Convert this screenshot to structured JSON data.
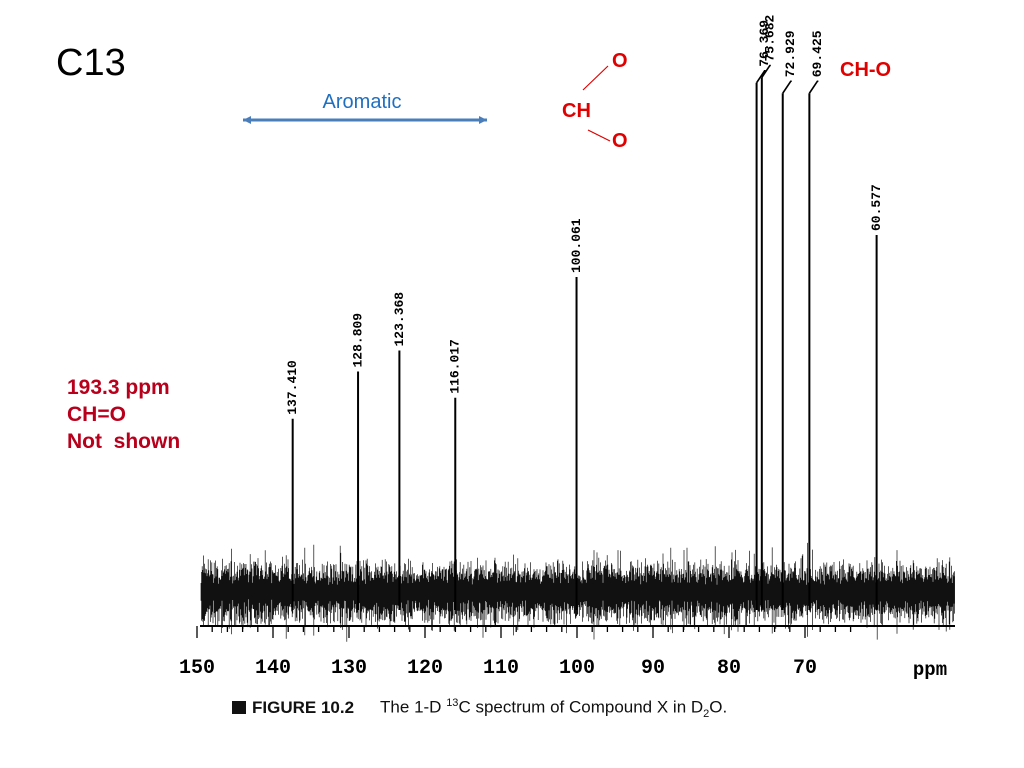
{
  "slide": {
    "title": "C13",
    "note_lines": [
      "193.3 ppm",
      "CH=O",
      "Not  shown"
    ]
  },
  "annotations": {
    "aromatic_label": "Aromatic",
    "acetal_o_top": "O",
    "acetal_ch": "CH",
    "acetal_o_bottom": "O",
    "cho_label": "CH-O"
  },
  "colors": {
    "note_red": "#b8001c",
    "label_red": "#e00000",
    "arrow_blue": "#4a7ebb",
    "aromatic_text_blue": "#1f6fc0",
    "ink": "#000000"
  },
  "caption": {
    "figure": "FIGURE 10.2",
    "text_before": "The 1-D ",
    "superscript": "13",
    "text_middle": "C spectrum of Compound X in D",
    "subscript": "2",
    "text_after": "O."
  },
  "chart_data": {
    "type": "line",
    "x_unit_label": "ppm",
    "xlim": [
      150,
      60
    ],
    "x_ticks": [
      150,
      140,
      130,
      120,
      110,
      100,
      90,
      80,
      70
    ],
    "peaks": [
      {
        "ppm": 137.41,
        "label": "137.410",
        "rel_intensity": 0.33
      },
      {
        "ppm": 128.809,
        "label": "128.809",
        "rel_intensity": 0.42
      },
      {
        "ppm": 123.368,
        "label": "123.368",
        "rel_intensity": 0.46
      },
      {
        "ppm": 116.017,
        "label": "116.017",
        "rel_intensity": 0.37
      },
      {
        "ppm": 100.061,
        "label": "100.061",
        "rel_intensity": 0.6
      },
      {
        "ppm": 76.369,
        "label": "76.369",
        "rel_intensity": 0.97
      },
      {
        "ppm": 75.682,
        "label": "75.682",
        "rel_intensity": 0.98
      },
      {
        "ppm": 72.929,
        "label": "72.929",
        "rel_intensity": 0.95
      },
      {
        "ppm": 69.425,
        "label": "69.425",
        "rel_intensity": 0.95
      },
      {
        "ppm": 60.577,
        "label": "60.577",
        "rel_intensity": 0.68
      }
    ],
    "grid": false,
    "legend": "none"
  }
}
